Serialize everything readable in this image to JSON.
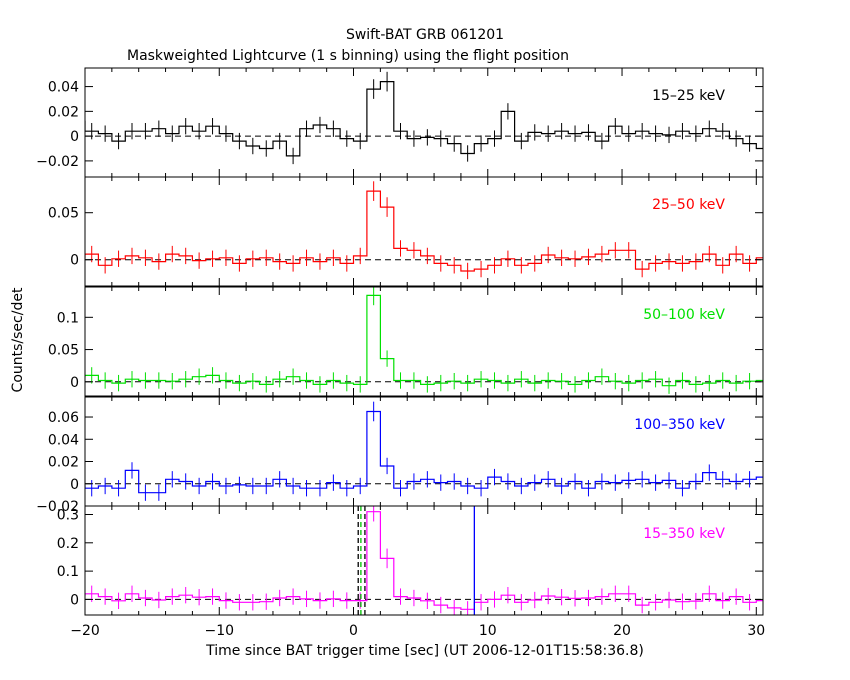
{
  "chart_data": {
    "type": "line",
    "title": "Swift-BAT GRB 061201",
    "subtitle": "Maskweighted Lightcurve (1 s binning) using the flight position",
    "xlabel": "Time since BAT trigger time [sec] (UT 2006-12-01T15:58:36.8)",
    "ylabel": "Counts/sec/det",
    "xlim": [
      -20,
      30.5
    ],
    "x_ticks": [
      -20,
      -10,
      0,
      10,
      20,
      30
    ],
    "x_tick_labels": [
      "−20",
      "−10",
      "0",
      "10",
      "20",
      "30"
    ],
    "vertical_markers": [
      {
        "panel": 4,
        "x": 0.35,
        "style": "dashed",
        "color": "#000000"
      },
      {
        "panel": 4,
        "x": 0.55,
        "style": "dashed",
        "color": "#00c000"
      },
      {
        "panel": 4,
        "x": 0.85,
        "style": "dashed",
        "color": "#000000"
      },
      {
        "panel": 4,
        "x": 9.0,
        "style": "solid",
        "color": "#0000ff"
      }
    ],
    "panels": [
      {
        "band": "15–25 keV",
        "color": "#000000",
        "ylim": [
          -0.033,
          0.055
        ],
        "y_ticks": [
          -0.02,
          0,
          0.02,
          0.04
        ],
        "y_tick_labels": [
          "−0.02",
          "0",
          "0.02",
          "0.04"
        ],
        "values": [
          -0.002,
          0.012,
          0.004,
          0.002,
          -0.004,
          0.004,
          0.004,
          0.006,
          0.002,
          0.008,
          0.004,
          0.008,
          0.002,
          -0.004,
          -0.008,
          -0.01,
          -0.004,
          -0.016,
          0.006,
          0.009,
          0.006,
          -0.002,
          -0.004,
          0.038,
          0.044,
          0.004,
          -0.002,
          -0.001,
          -0.002,
          -0.006,
          -0.014,
          -0.006,
          -0.002,
          0.02,
          -0.004,
          0.003,
          0.002,
          0.004,
          0.002,
          0.003,
          -0.004,
          0.008,
          0.002,
          0.004,
          0.002,
          0.001,
          0.004,
          0.002,
          0.006,
          0.004,
          -0.002,
          -0.006,
          -0.01,
          -0.012,
          -0.006
        ]
      },
      {
        "band": "25–50 keV",
        "color": "#ff0000",
        "ylim": [
          -0.028,
          0.088
        ],
        "y_ticks": [
          0,
          0.05
        ],
        "y_tick_labels": [
          "0",
          "0.05"
        ],
        "values": [
          -0.004,
          0.002,
          0.006,
          -0.006,
          0.001,
          0.004,
          0.002,
          -0.002,
          0.006,
          0.004,
          -0.001,
          0.001,
          0.002,
          -0.004,
          0.001,
          0.002,
          -0.002,
          -0.004,
          0.002,
          -0.002,
          0.002,
          -0.004,
          0.004,
          0.073,
          0.056,
          0.012,
          0.01,
          0.004,
          -0.004,
          -0.006,
          -0.012,
          -0.01,
          -0.006,
          0.001,
          -0.006,
          -0.004,
          0.005,
          0.002,
          0.001,
          0.003,
          0.006,
          0.01,
          0.01,
          -0.01,
          -0.004,
          -0.002,
          -0.004,
          -0.002,
          0.006,
          -0.006,
          0.006,
          -0.004,
          0.002,
          0.002,
          -0.002
        ]
      },
      {
        "band": "50–100 keV",
        "color": "#00e000",
        "ylim": [
          -0.022,
          0.147
        ],
        "y_ticks": [
          0,
          0.05,
          0.1
        ],
        "y_tick_labels": [
          "0",
          "0.05",
          "0.1"
        ],
        "values": [
          0.002,
          0.008,
          0.01,
          0.002,
          -0.002,
          0.004,
          0.002,
          0.002,
          0.001,
          0.004,
          0.008,
          0.01,
          0.002,
          -0.002,
          0.001,
          -0.004,
          0.004,
          0.008,
          0.002,
          -0.004,
          0.002,
          -0.002,
          -0.004,
          0.134,
          0.036,
          0.002,
          0.002,
          -0.004,
          -0.002,
          0.001,
          -0.002,
          0.004,
          0.002,
          -0.002,
          0.004,
          -0.002,
          0.002,
          0.001,
          -0.004,
          0.002,
          0.008,
          0.001,
          -0.002,
          0.002,
          0.004,
          -0.006,
          0.002,
          -0.004,
          -0.002,
          0.002,
          -0.002,
          0.001,
          0.002,
          0.008,
          -0.002
        ]
      },
      {
        "band": "100–350 keV",
        "color": "#0000ff",
        "ylim": [
          -0.02,
          0.078
        ],
        "y_ticks": [
          -0.02,
          0,
          0.02,
          0.04,
          0.06
        ],
        "y_tick_labels": [
          "−0.02",
          "0",
          "0.02",
          "0.04",
          "0.06"
        ],
        "values": [
          -0.003,
          -0.002,
          -0.004,
          -0.002,
          -0.004,
          0.012,
          -0.008,
          -0.008,
          0.004,
          0.002,
          -0.002,
          0.002,
          -0.002,
          -0.001,
          -0.002,
          -0.002,
          0.004,
          -0.002,
          -0.004,
          -0.004,
          0.001,
          -0.004,
          -0.002,
          0.065,
          0.016,
          -0.004,
          0.002,
          0.004,
          0.001,
          0.002,
          -0.002,
          -0.004,
          0.006,
          0.002,
          -0.002,
          0.001,
          0.004,
          -0.002,
          0.002,
          -0.004,
          0.002,
          0.001,
          0.003,
          0.004,
          0.001,
          0.003,
          -0.004,
          0.002,
          0.01,
          0.004,
          0.002,
          0.004,
          0.006,
          -0.004,
          0.001
        ]
      },
      {
        "band": "15–350 keV",
        "color": "#ff00ff",
        "ylim": [
          -0.055,
          0.33
        ],
        "y_ticks": [
          0,
          0.1,
          0.2,
          0.3
        ],
        "y_tick_labels": [
          "0",
          "0.1",
          "0.2",
          "0.3"
        ],
        "values": [
          -0.01,
          0.015,
          0.02,
          0.01,
          -0.005,
          0.02,
          0.005,
          -0.002,
          0.01,
          0.015,
          0.008,
          0.01,
          -0.004,
          -0.01,
          -0.01,
          -0.008,
          0.005,
          0.01,
          0.002,
          -0.004,
          0.002,
          -0.004,
          -0.004,
          0.31,
          0.145,
          0.01,
          0.005,
          -0.005,
          -0.02,
          -0.03,
          -0.035,
          -0.01,
          0.0,
          0.015,
          -0.01,
          -0.002,
          0.012,
          0.008,
          0.004,
          0.005,
          0.01,
          0.02,
          0.02,
          -0.02,
          -0.01,
          -0.002,
          -0.008,
          -0.006,
          0.02,
          -0.004,
          0.01,
          -0.01,
          -0.004,
          0.006,
          -0.01
        ]
      }
    ],
    "x_start": -22,
    "bin_width": 1
  }
}
